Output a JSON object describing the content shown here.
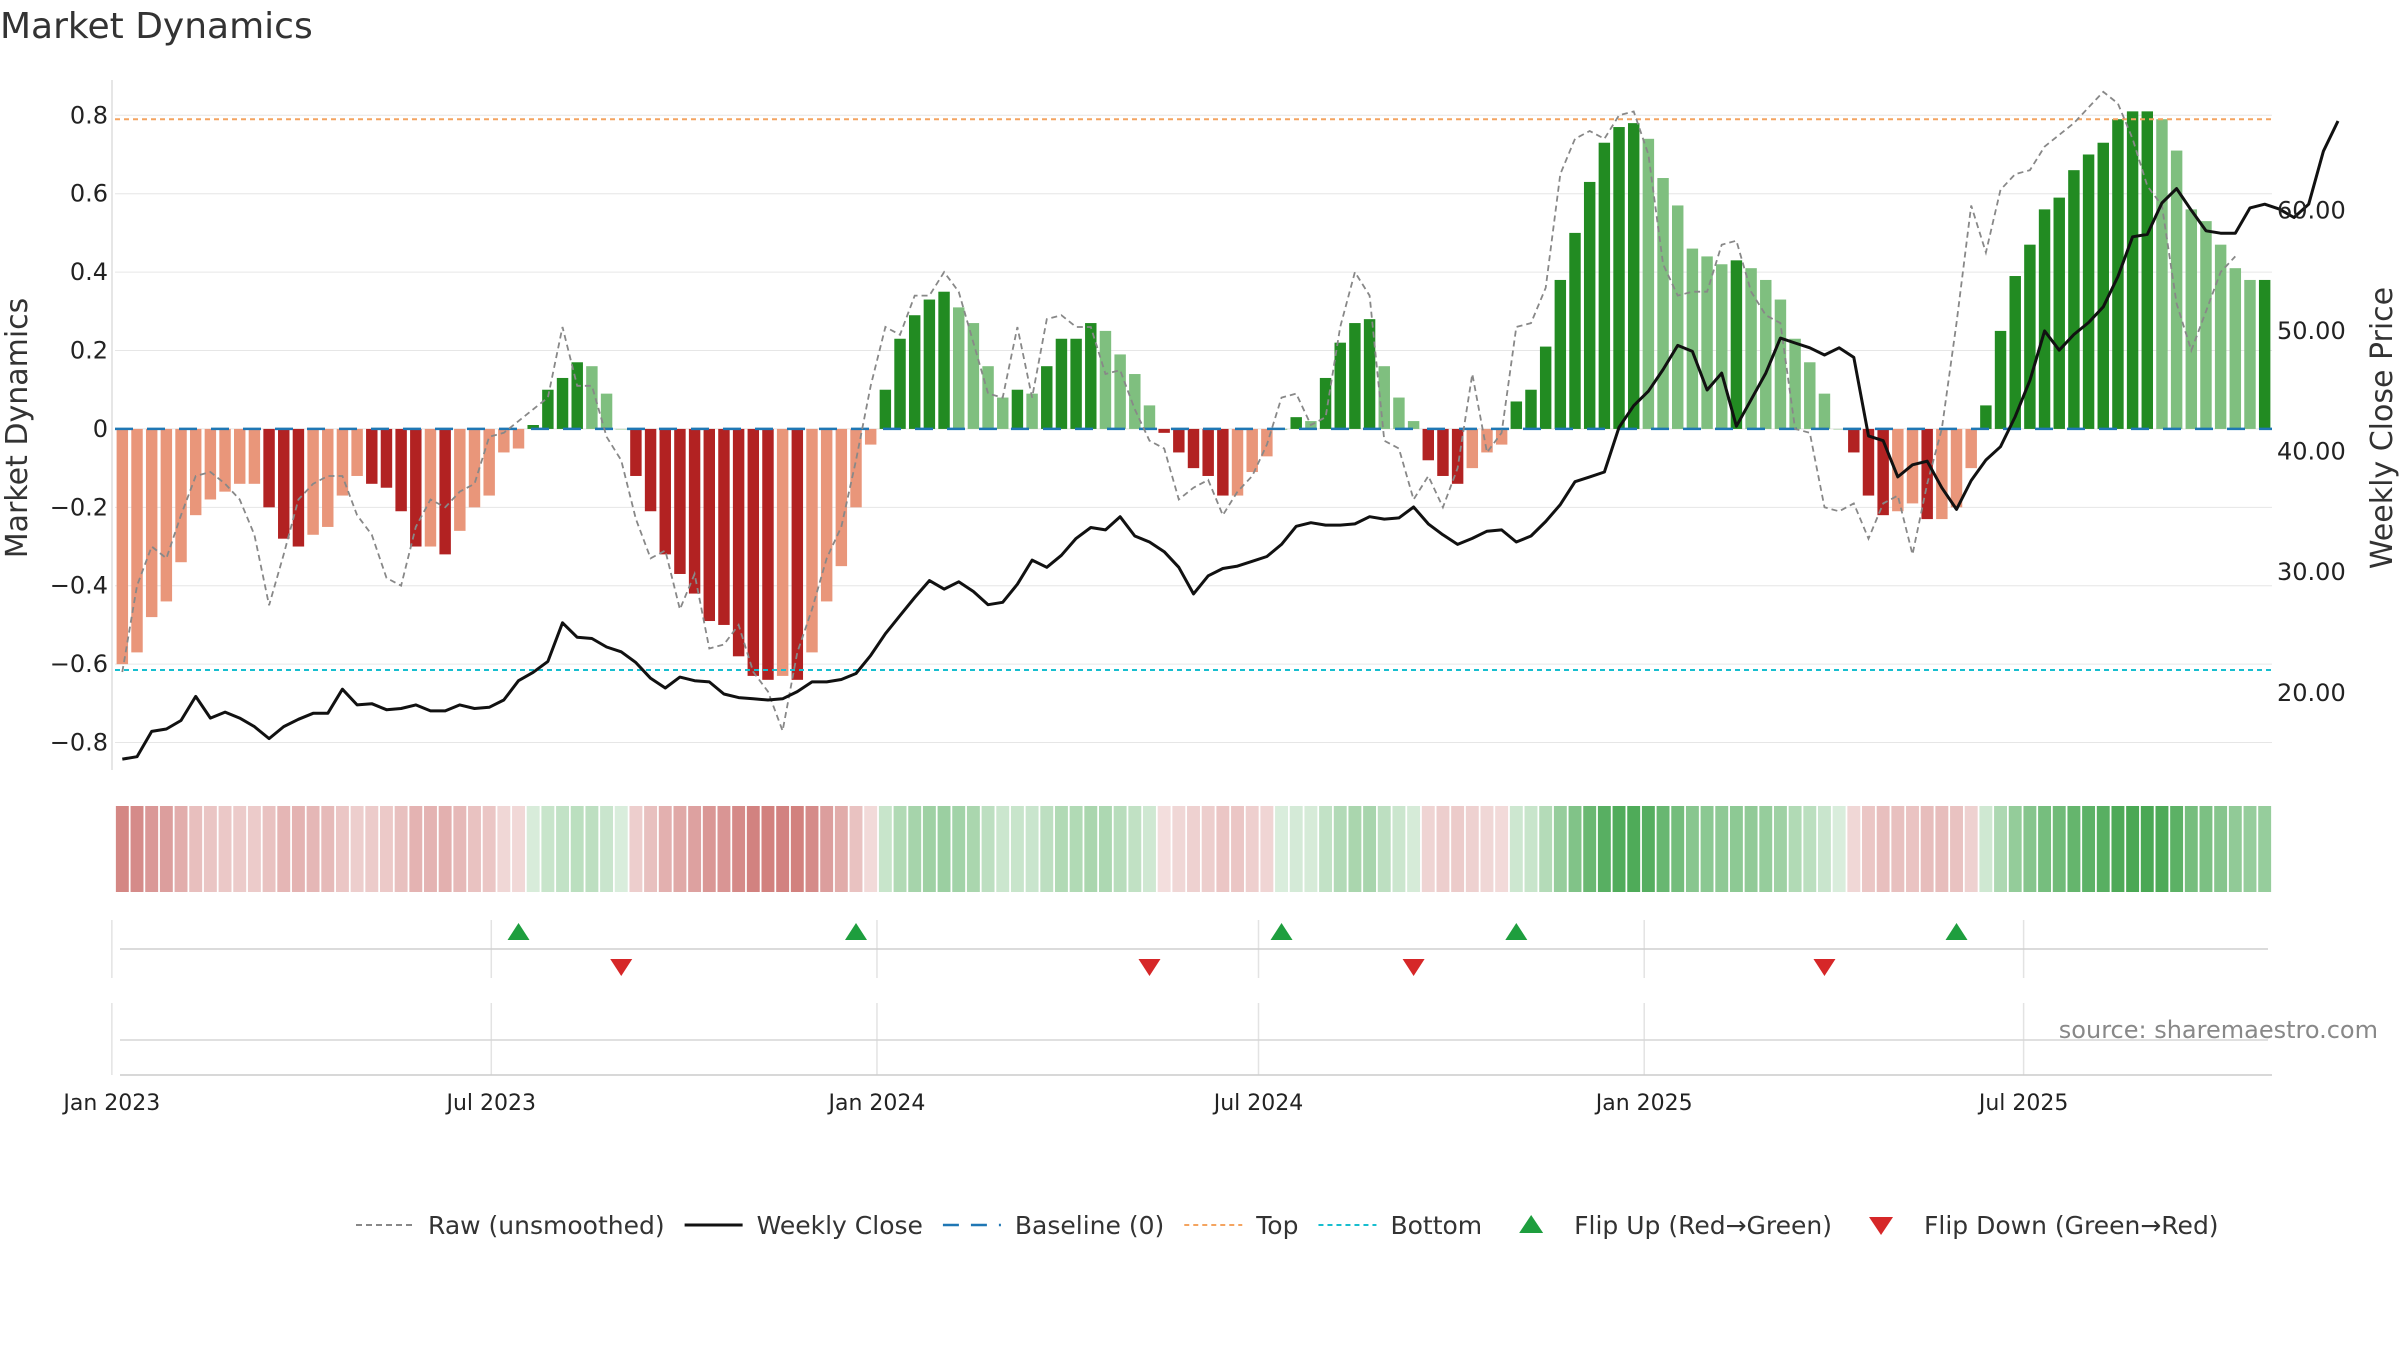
{
  "chart_data": {
    "type": "bar",
    "title": "Market Dynamics",
    "ylabel": "Market Dynamics",
    "y2label": "Weekly Close Price",
    "ylim": [
      -0.87,
      0.89
    ],
    "y2lim": [
      13.6,
      70.8
    ],
    "yticks": [
      "0.8",
      "0.6",
      "0.4",
      "0.2",
      "0",
      "−0.2",
      "−0.4",
      "−0.6",
      "−0.8"
    ],
    "y2ticks": [
      "60.00",
      "50.00",
      "40.00",
      "30.00",
      "20.00"
    ],
    "xticks": [
      "Jan 2023",
      "Jul 2023",
      "Jan 2024",
      "Jul 2024",
      "Jan 2025",
      "Jul 2025"
    ],
    "top_line": 0.79,
    "bottom_line": -0.615,
    "x_start": "2023-01-06",
    "x_interval_days": 7,
    "momentum": [
      -0.6,
      -0.57,
      -0.48,
      -0.44,
      -0.34,
      -0.22,
      -0.18,
      -0.16,
      -0.14,
      -0.14,
      -0.2,
      -0.28,
      -0.3,
      -0.27,
      -0.25,
      -0.17,
      -0.12,
      -0.14,
      -0.15,
      -0.21,
      -0.3,
      -0.3,
      -0.32,
      -0.26,
      -0.2,
      -0.17,
      -0.06,
      -0.05,
      0.01,
      0.1,
      0.13,
      0.17,
      0.16,
      0.09,
      0.0,
      -0.12,
      -0.21,
      -0.32,
      -0.37,
      -0.42,
      -0.49,
      -0.5,
      -0.58,
      -0.63,
      -0.64,
      -0.63,
      -0.64,
      -0.57,
      -0.44,
      -0.35,
      -0.2,
      -0.04,
      0.1,
      0.23,
      0.29,
      0.33,
      0.35,
      0.31,
      0.27,
      0.16,
      0.08,
      0.1,
      0.09,
      0.16,
      0.23,
      0.23,
      0.27,
      0.25,
      0.19,
      0.14,
      0.06,
      -0.01,
      -0.06,
      -0.1,
      -0.12,
      -0.17,
      -0.17,
      -0.11,
      -0.07,
      0.0,
      0.03,
      0.02,
      0.13,
      0.22,
      0.27,
      0.28,
      0.16,
      0.08,
      0.02,
      -0.08,
      -0.12,
      -0.14,
      -0.1,
      -0.06,
      -0.04,
      0.07,
      0.1,
      0.21,
      0.38,
      0.5,
      0.63,
      0.73,
      0.77,
      0.78,
      0.74,
      0.64,
      0.57,
      0.46,
      0.44,
      0.42,
      0.43,
      0.41,
      0.38,
      0.33,
      0.23,
      0.17,
      0.09,
      0.0,
      -0.06,
      -0.17,
      -0.22,
      -0.21,
      -0.19,
      -0.23,
      -0.23,
      -0.2,
      -0.1,
      0.06,
      0.25,
      0.39,
      0.47,
      0.56,
      0.59,
      0.66,
      0.7,
      0.73,
      0.79,
      0.81,
      0.81,
      0.79,
      0.71,
      0.56,
      0.53,
      0.47,
      0.41,
      0.38,
      0.38
    ],
    "raw": [
      -0.62,
      -0.4,
      -0.3,
      -0.33,
      -0.22,
      -0.12,
      -0.11,
      -0.14,
      -0.18,
      -0.27,
      -0.45,
      -0.32,
      -0.18,
      -0.14,
      -0.12,
      -0.12,
      -0.22,
      -0.27,
      -0.38,
      -0.4,
      -0.25,
      -0.18,
      -0.2,
      -0.16,
      -0.14,
      -0.02,
      -0.01,
      0.02,
      0.05,
      0.08,
      0.26,
      0.11,
      0.11,
      -0.02,
      -0.08,
      -0.23,
      -0.33,
      -0.31,
      -0.46,
      -0.37,
      -0.56,
      -0.55,
      -0.5,
      -0.62,
      -0.67,
      -0.77,
      -0.57,
      -0.46,
      -0.33,
      -0.25,
      -0.08,
      0.11,
      0.26,
      0.24,
      0.34,
      0.34,
      0.4,
      0.35,
      0.22,
      0.09,
      0.08,
      0.26,
      0.08,
      0.28,
      0.29,
      0.26,
      0.26,
      0.14,
      0.15,
      0.05,
      -0.03,
      -0.05,
      -0.18,
      -0.15,
      -0.13,
      -0.22,
      -0.16,
      -0.12,
      -0.04,
      0.08,
      0.09,
      0.01,
      0.03,
      0.26,
      0.4,
      0.34,
      -0.03,
      -0.05,
      -0.18,
      -0.12,
      -0.2,
      -0.1,
      0.14,
      -0.06,
      -0.01,
      0.26,
      0.27,
      0.36,
      0.65,
      0.74,
      0.76,
      0.74,
      0.8,
      0.81,
      0.7,
      0.42,
      0.34,
      0.35,
      0.35,
      0.47,
      0.48,
      0.35,
      0.29,
      0.27,
      0.0,
      -0.01,
      -0.2,
      -0.21,
      -0.19,
      -0.28,
      -0.19,
      -0.17,
      -0.32,
      -0.14,
      0.0,
      0.27,
      0.57,
      0.45,
      0.61,
      0.65,
      0.66,
      0.72,
      0.75,
      0.78,
      0.82,
      0.86,
      0.83,
      0.74,
      0.62,
      0.57,
      0.32,
      0.2,
      0.3,
      0.4,
      0.44
    ],
    "weekly_close": [
      14.5,
      14.7,
      16.8,
      17.0,
      17.7,
      19.7,
      17.9,
      18.4,
      17.9,
      17.2,
      16.2,
      17.2,
      17.8,
      18.3,
      18.3,
      20.3,
      19.0,
      19.1,
      18.6,
      18.7,
      19.0,
      18.5,
      18.5,
      19.0,
      18.7,
      18.8,
      19.4,
      21.0,
      21.7,
      22.6,
      25.8,
      24.6,
      24.5,
      23.8,
      23.4,
      22.5,
      21.2,
      20.4,
      21.3,
      21.0,
      20.9,
      19.9,
      19.6,
      19.5,
      19.4,
      19.5,
      20.1,
      20.9,
      20.9,
      21.1,
      21.6,
      23.1,
      24.9,
      26.4,
      27.9,
      29.3,
      28.6,
      29.2,
      28.4,
      27.3,
      27.5,
      29.0,
      31.0,
      30.4,
      31.4,
      32.8,
      33.7,
      33.5,
      34.6,
      33.0,
      32.5,
      31.7,
      30.4,
      28.2,
      29.7,
      30.3,
      30.5,
      30.9,
      31.3,
      32.3,
      33.8,
      34.1,
      33.9,
      33.9,
      34.0,
      34.6,
      34.4,
      34.5,
      35.4,
      34.0,
      33.1,
      32.3,
      32.8,
      33.4,
      33.5,
      32.5,
      33.0,
      34.2,
      35.6,
      37.5,
      37.9,
      38.3,
      42.0,
      43.8,
      45.0,
      46.8,
      48.8,
      48.3,
      45.1,
      46.5,
      42.1,
      44.3,
      46.5,
      49.4,
      49.0,
      48.6,
      48.0,
      48.6,
      47.8,
      41.3,
      40.9,
      37.9,
      38.9,
      39.2,
      37.0,
      35.2,
      37.6,
      39.3,
      40.4,
      42.9,
      45.9,
      50.0,
      48.4,
      49.7,
      50.7,
      52.0,
      54.5,
      57.8,
      58.0,
      60.6,
      61.8,
      60.0,
      58.3,
      58.1,
      58.1,
      60.2,
      60.5,
      60.1,
      59.4,
      60.5,
      64.9,
      67.4
    ],
    "flip_up_weeks": [
      27,
      50,
      79,
      95,
      125
    ],
    "flip_down_weeks": [
      34,
      70,
      88,
      116
    ],
    "legend": [
      {
        "label": "Raw (unsmoothed)",
        "symbol": "dashed-gray"
      },
      {
        "label": "Weekly Close",
        "symbol": "solid-black"
      },
      {
        "label": "Baseline (0)",
        "symbol": "dashed-blue"
      },
      {
        "label": "Top",
        "symbol": "dotted-orange"
      },
      {
        "label": "Bottom",
        "symbol": "dotted-cyan"
      },
      {
        "label": "Flip Up (Red→Green)",
        "symbol": "triangle-up-green"
      },
      {
        "label": "Flip Down (Green→Red)",
        "symbol": "triangle-down-red"
      }
    ],
    "colors": {
      "strong_green": "#228b22",
      "weak_green": "#7fbf7f",
      "strong_red": "#b22222",
      "weak_red": "#e9967a",
      "raw_line": "#888888",
      "close_line": "#111111",
      "baseline": "#1f77b4",
      "top": "#f4a460",
      "bottom": "#17becf",
      "flip_up": "#1e9e3e",
      "flip_down": "#d62728"
    },
    "source": "source: sharemaestro.com"
  }
}
